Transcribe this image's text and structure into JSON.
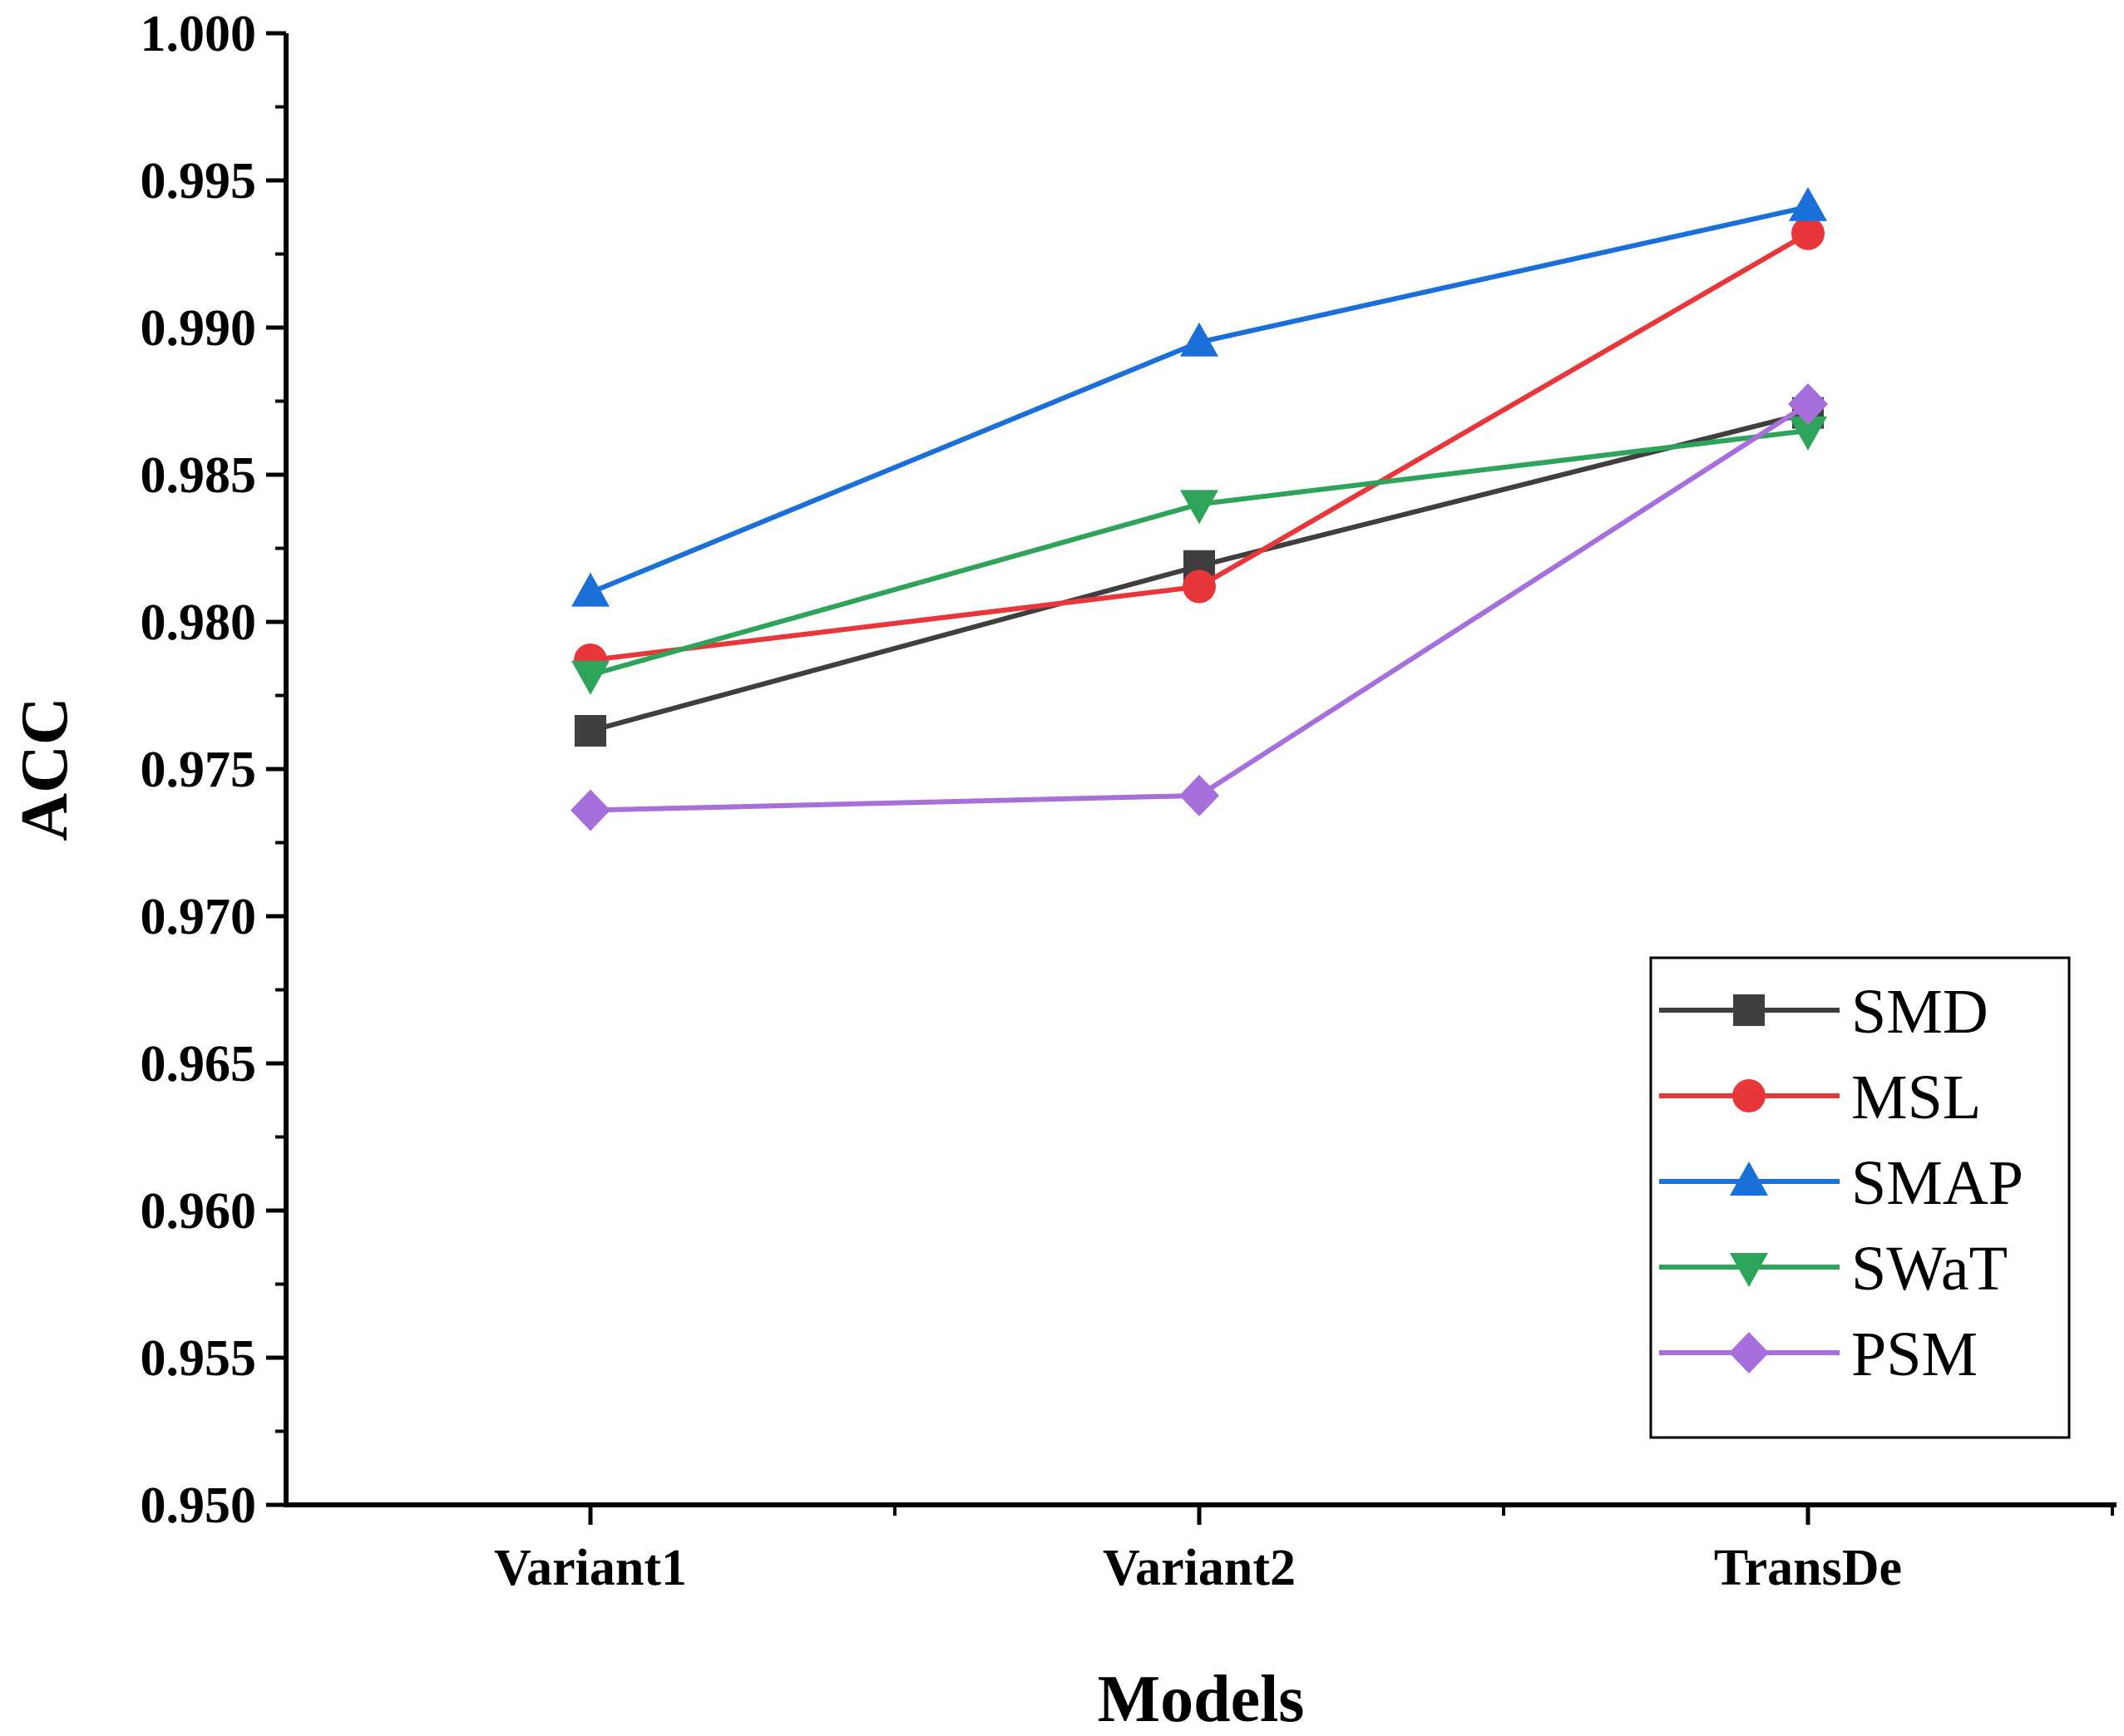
{
  "chart_data": {
    "type": "line",
    "title": "",
    "xlabel": "Models",
    "ylabel": "ACC",
    "categories": [
      "Variant1",
      "Variant2",
      "TransDe"
    ],
    "ylim": [
      0.95,
      1.0
    ],
    "yticks": [
      "0.950",
      "0.955",
      "0.960",
      "0.965",
      "0.970",
      "0.975",
      "0.980",
      "0.985",
      "0.990",
      "0.995",
      "1.000"
    ],
    "grid": false,
    "legend_position": "bottom-right",
    "series": [
      {
        "name": "SMD",
        "color": "#3f3f3f",
        "marker": "square",
        "values": [
          0.9763,
          0.9819,
          0.9871
        ]
      },
      {
        "name": "MSL",
        "color": "#e8373a",
        "marker": "circle",
        "values": [
          0.9787,
          0.9812,
          0.9932
        ]
      },
      {
        "name": "SMAP",
        "color": "#1a6fd8",
        "marker": "triangle-up",
        "values": [
          0.981,
          0.9895,
          0.9941
        ]
      },
      {
        "name": "SWaT",
        "color": "#2ea35a",
        "marker": "triangle-down",
        "values": [
          0.9782,
          0.984,
          0.9865
        ]
      },
      {
        "name": "PSM",
        "color": "#a66fdc",
        "marker": "diamond",
        "values": [
          0.9736,
          0.9741,
          0.9874
        ]
      }
    ]
  }
}
